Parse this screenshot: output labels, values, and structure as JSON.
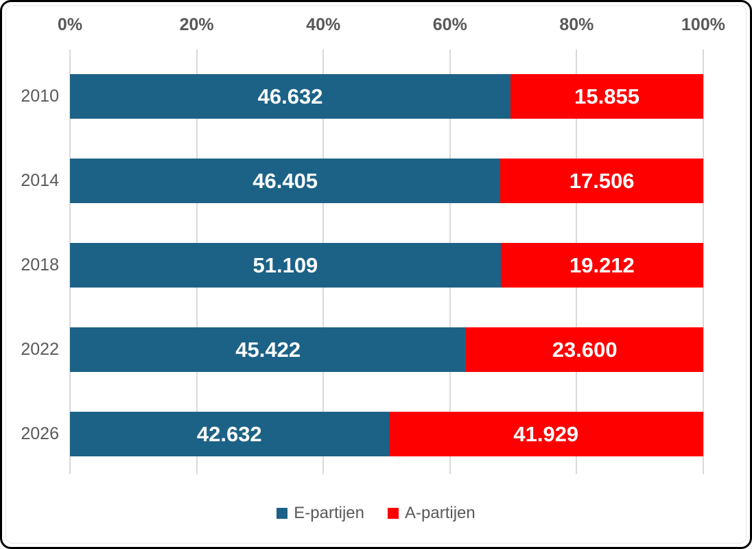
{
  "colors": {
    "series_blue": "#1C6286",
    "series_red": "#FE0000",
    "axis_text": "#595959",
    "gridline": "#D9D9D9",
    "bar_label_text": "#FFFFFF",
    "frame_border": "#000000",
    "background": "#FFFFFF"
  },
  "chart_data": {
    "type": "bar",
    "variant": "100%-stacked-horizontal",
    "title": "",
    "categories": [
      "2010",
      "2014",
      "2018",
      "2022",
      "2026"
    ],
    "series": [
      {
        "name": "E-partijen",
        "color": "#1C6286",
        "values": [
          46632,
          46405,
          51109,
          45422,
          42632
        ],
        "labels": [
          "46.632",
          "46.405",
          "51.109",
          "45.422",
          "42.632"
        ]
      },
      {
        "name": "A-partijen",
        "color": "#FE0000",
        "values": [
          15855,
          17506,
          19212,
          23600,
          41929
        ],
        "labels": [
          "15.855",
          "17.506",
          "19.212",
          "23.600",
          "41.929"
        ]
      }
    ],
    "x_axis": {
      "position": "top",
      "ticks": [
        "0%",
        "20%",
        "40%",
        "60%",
        "80%",
        "100%"
      ],
      "range": [
        0,
        100
      ],
      "unit": "%"
    },
    "y_axis": {
      "label": "",
      "categories_are_years": true
    },
    "legend": {
      "position": "bottom",
      "entries": [
        "E-partijen",
        "A-partijen"
      ]
    },
    "grid": true,
    "data_label_position": "center"
  }
}
